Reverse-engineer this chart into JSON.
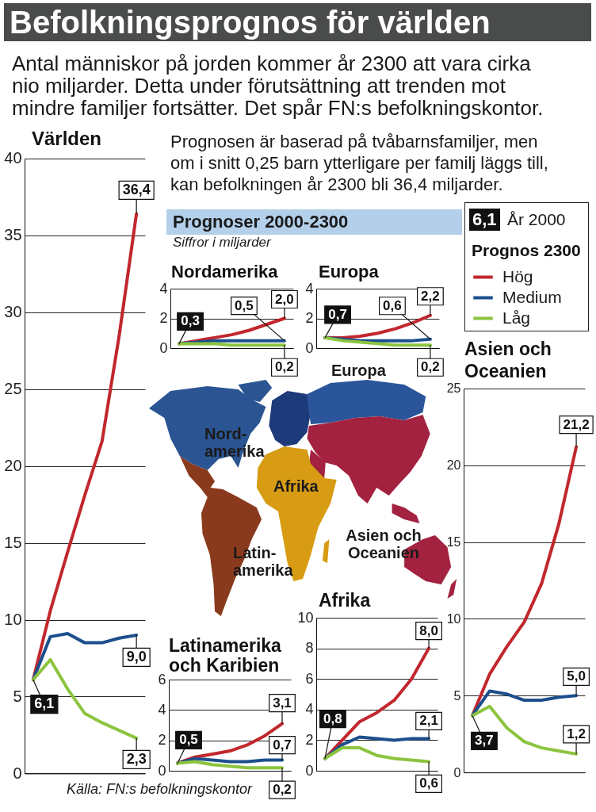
{
  "chart_data": [
    {
      "type": "other",
      "title": "Befolkningsprognos för världen",
      "subtitle": "Antal människor på jorden kommer år 2300 att vara cirka nio miljarder. Detta under förutsättning att trenden mot mindre familjer fortsätter. Det spår FN:s befolkningskontor.",
      "annotations": [
        "Prognosen är baserad på tvåbarnsfamiljer, men om i snitt 0,25 barn ytterligare per familj läggs till, kan befolkningen år 2300 bli 36,4 miljarder.",
        "Prognoser 2000-2300",
        "Siffror i miljarder",
        "6,1",
        "År 2000",
        "Europa",
        "Nord-amerika",
        "Afrika",
        "Latin-amerika",
        "Asien och Oceanien",
        "Källa: FN:s befolkningskontor"
      ]
    },
    {
      "type": "line",
      "title": "Världen",
      "categories": [
        null,
        null,
        null,
        null,
        null,
        null,
        null
      ],
      "series": [
        {
          "color": "#c1272d",
          "values": [
            6.1,
            10.6,
            14.4,
            18.1,
            21.6,
            28.5,
            36.4
          ],
          "value_labels": [
            null,
            null,
            null,
            null,
            null,
            null,
            "36,4"
          ]
        },
        {
          "color": "#1c4f8c",
          "values": [
            6.1,
            8.9,
            9.1,
            8.5,
            8.5,
            8.8,
            9.0
          ],
          "value_labels": [
            "6,1",
            null,
            null,
            null,
            null,
            null,
            "9,0"
          ]
        },
        {
          "color": "#8cc43f",
          "values": [
            6.1,
            7.4,
            5.5,
            3.9,
            3.3,
            2.8,
            2.3
          ],
          "value_labels": [
            null,
            null,
            null,
            null,
            null,
            null,
            "2,3"
          ]
        }
      ],
      "ylim": [
        0,
        40
      ],
      "yticks": [
        0,
        5,
        10,
        15,
        20,
        25,
        30,
        35,
        40
      ],
      "grid": "y"
    },
    {
      "type": "line",
      "title": "Nordamerika",
      "categories": [
        null,
        null,
        null,
        null,
        null,
        null,
        null
      ],
      "series": [
        {
          "color": "#c1272d",
          "values": [
            0.3,
            0.5,
            0.7,
            0.9,
            1.2,
            1.6,
            2.0
          ],
          "value_labels": [
            null,
            null,
            null,
            null,
            null,
            null,
            "2,0"
          ]
        },
        {
          "color": "#1c4f8c",
          "values": [
            0.3,
            0.4,
            0.5,
            0.5,
            0.5,
            0.5,
            0.5
          ],
          "value_labels": [
            "0,3",
            null,
            null,
            null,
            null,
            null,
            "0,5"
          ]
        },
        {
          "color": "#8cc43f",
          "values": [
            0.3,
            0.3,
            0.3,
            0.2,
            0.2,
            0.2,
            0.2
          ],
          "value_labels": [
            null,
            null,
            null,
            null,
            null,
            null,
            "0,2"
          ]
        }
      ],
      "ylim": [
        0,
        4
      ],
      "yticks": [
        0,
        2,
        4
      ],
      "grid": "y"
    },
    {
      "type": "line",
      "title": "Europa",
      "categories": [
        null,
        null,
        null,
        null,
        null,
        null,
        null
      ],
      "series": [
        {
          "name": "Hög",
          "color": "#c1272d",
          "values": [
            0.7,
            0.7,
            0.8,
            1.0,
            1.3,
            1.7,
            2.2
          ],
          "value_labels": [
            null,
            null,
            null,
            null,
            null,
            null,
            "2,2"
          ]
        },
        {
          "name": "Medium",
          "color": "#1c4f8c",
          "values": [
            0.7,
            0.6,
            0.5,
            0.5,
            0.5,
            0.5,
            0.6
          ],
          "value_labels": [
            "0,7",
            null,
            null,
            null,
            null,
            null,
            "0,6"
          ]
        },
        {
          "name": "Låg",
          "color": "#8cc43f",
          "values": [
            0.7,
            0.5,
            0.4,
            0.3,
            0.2,
            0.2,
            0.2
          ],
          "value_labels": [
            null,
            null,
            null,
            null,
            null,
            null,
            "0,2"
          ]
        }
      ],
      "ylim": [
        0,
        4
      ],
      "yticks": [
        0,
        2,
        4
      ],
      "grid": "y",
      "legend": "right",
      "legend_title": "Prognos 2300"
    },
    {
      "type": "line",
      "title": "Asien och Oceanien",
      "categories": [
        null,
        null,
        null,
        null,
        null,
        null,
        null
      ],
      "series": [
        {
          "color": "#c1272d",
          "values": [
            3.7,
            6.4,
            8.2,
            9.8,
            12.3,
            16.2,
            21.2
          ],
          "value_labels": [
            null,
            null,
            null,
            null,
            null,
            null,
            "21,2"
          ]
        },
        {
          "color": "#1c4f8c",
          "values": [
            3.7,
            5.3,
            5.1,
            4.7,
            4.7,
            4.9,
            5.0
          ],
          "value_labels": [
            "3,7",
            null,
            null,
            null,
            null,
            null,
            "5,0"
          ]
        },
        {
          "color": "#8cc43f",
          "values": [
            3.7,
            4.3,
            2.9,
            2.0,
            1.6,
            1.4,
            1.2
          ],
          "value_labels": [
            null,
            null,
            null,
            null,
            null,
            null,
            "1,2"
          ]
        }
      ],
      "ylim": [
        0,
        25
      ],
      "yticks": [
        0,
        5,
        10,
        15,
        20,
        25
      ],
      "grid": "y"
    },
    {
      "type": "line",
      "title": "Latinamerika och Karibien",
      "categories": [
        null,
        null,
        null,
        null,
        null,
        null,
        null
      ],
      "series": [
        {
          "color": "#c1272d",
          "values": [
            0.5,
            0.9,
            1.1,
            1.3,
            1.7,
            2.3,
            3.1
          ],
          "value_labels": [
            null,
            null,
            null,
            null,
            null,
            null,
            "3,1"
          ]
        },
        {
          "color": "#1c4f8c",
          "values": [
            0.5,
            0.8,
            0.7,
            0.6,
            0.6,
            0.7,
            0.7
          ],
          "value_labels": [
            "0,5",
            null,
            null,
            null,
            null,
            null,
            "0,7"
          ]
        },
        {
          "color": "#8cc43f",
          "values": [
            0.5,
            0.6,
            0.4,
            0.3,
            0.2,
            0.2,
            0.2
          ],
          "value_labels": [
            null,
            null,
            null,
            null,
            null,
            null,
            "0,2"
          ]
        }
      ],
      "ylim": [
        0,
        6
      ],
      "yticks": [
        0,
        2,
        4,
        6
      ],
      "grid": "y"
    },
    {
      "type": "line",
      "title": "Afrika",
      "categories": [
        null,
        null,
        null,
        null,
        null,
        null,
        null
      ],
      "series": [
        {
          "color": "#c1272d",
          "values": [
            0.8,
            2.0,
            3.2,
            3.8,
            4.6,
            6.0,
            8.0
          ],
          "value_labels": [
            null,
            null,
            null,
            null,
            null,
            null,
            "8,0"
          ]
        },
        {
          "color": "#1c4f8c",
          "values": [
            0.8,
            1.7,
            2.2,
            2.1,
            2.0,
            2.1,
            2.1
          ],
          "value_labels": [
            "0,8",
            null,
            null,
            null,
            null,
            null,
            "2,1"
          ]
        },
        {
          "color": "#8cc43f",
          "values": [
            0.8,
            1.5,
            1.5,
            1.0,
            0.8,
            0.7,
            0.6
          ],
          "value_labels": [
            null,
            null,
            null,
            null,
            null,
            null,
            "0,6"
          ]
        }
      ],
      "ylim": [
        0,
        10
      ],
      "yticks": [
        0,
        2,
        4,
        6,
        8,
        10
      ],
      "grid": "y"
    }
  ]
}
